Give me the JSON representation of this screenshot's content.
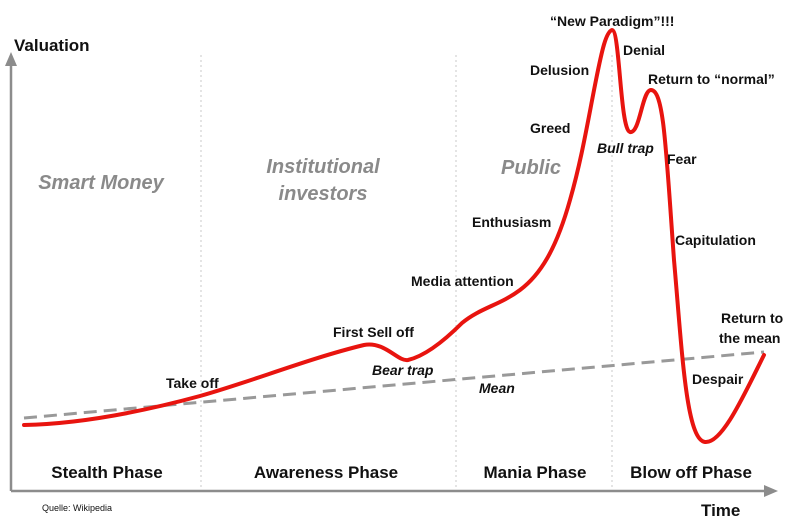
{
  "axes": {
    "y_title": "Valuation",
    "x_title": "Time"
  },
  "source": "Quelle: Wikipedia",
  "phases": [
    "Stealth Phase",
    "Awareness Phase",
    "Mania Phase",
    "Blow off Phase"
  ],
  "groups": {
    "smart_money": "Smart Money",
    "institutional_1": "Institutional",
    "institutional_2": "investors",
    "public": "Public"
  },
  "mean_label": "Mean",
  "annotations": {
    "take_off": "Take off",
    "first_sell_off": "First Sell off",
    "bear_trap": "Bear trap",
    "media_attention": "Media attention",
    "enthusiasm": "Enthusiasm",
    "greed": "Greed",
    "delusion": "Delusion",
    "new_paradigm": "“New Paradigm”!!!",
    "denial": "Denial",
    "bull_trap": "Bull trap",
    "return_to_normal": "Return to “normal”",
    "fear": "Fear",
    "capitulation": "Capitulation",
    "despair": "Despair",
    "return_to_mean_1": "Return to",
    "return_to_mean_2": "the mean"
  },
  "colors": {
    "curve": "#e8140f",
    "mean_line": "#999999",
    "separator": "#c8c8c8",
    "axis": "#8c8c8c"
  }
}
